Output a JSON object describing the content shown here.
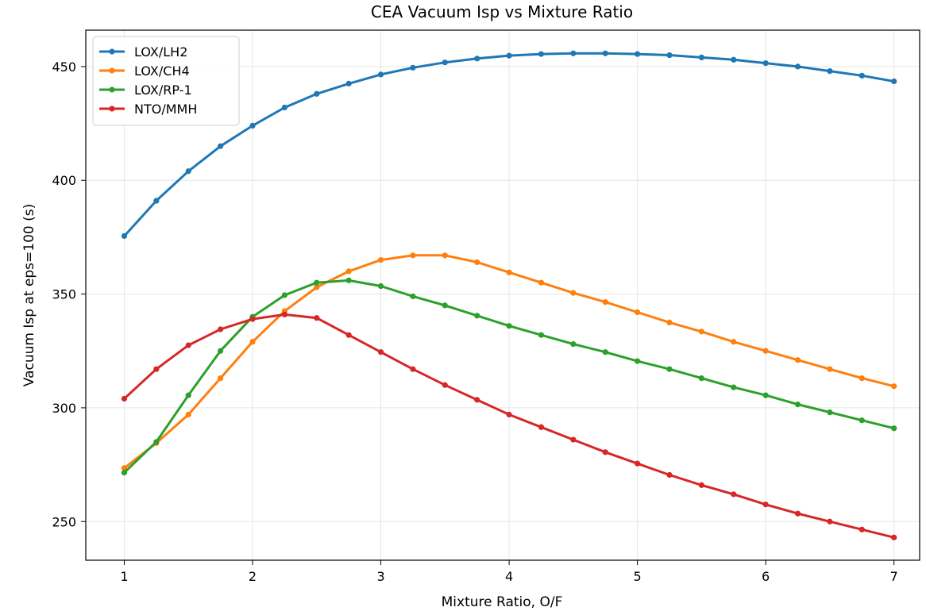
{
  "chart_data": {
    "type": "line",
    "title": "CEA Vacuum Isp vs Mixture Ratio",
    "xlabel": "Mixture Ratio, O/F",
    "ylabel": "Vacuum Isp at eps=100 (s)",
    "xlim": [
      0.7,
      7.2
    ],
    "ylim": [
      233,
      466
    ],
    "xticks": [
      1,
      2,
      3,
      4,
      5,
      6,
      7
    ],
    "yticks": [
      250,
      300,
      350,
      400,
      450
    ],
    "grid": true,
    "legend": "top-left",
    "x": [
      1.0,
      1.25,
      1.5,
      1.75,
      2.0,
      2.25,
      2.5,
      2.75,
      3.0,
      3.25,
      3.5,
      3.75,
      4.0,
      4.25,
      4.5,
      4.75,
      5.0,
      5.25,
      5.5,
      5.75,
      6.0,
      6.25,
      6.5,
      6.75,
      7.0
    ],
    "series": [
      {
        "name": "LOX/LH2",
        "color": "#1f77b4",
        "values": [
          375.5,
          391,
          404,
          415,
          424,
          432,
          438,
          442.5,
          446.5,
          449.5,
          451.8,
          453.5,
          454.8,
          455.5,
          455.8,
          455.8,
          455.5,
          455,
          454,
          453,
          451.5,
          450,
          448,
          446,
          443.5
        ]
      },
      {
        "name": "LOX/CH4",
        "color": "#ff7f0e",
        "values": [
          273.5,
          284.5,
          297,
          313,
          329,
          342.5,
          353,
          360,
          365,
          367,
          367,
          364,
          359.5,
          355,
          350.5,
          346.5,
          342,
          337.5,
          333.5,
          329,
          325,
          321,
          317,
          313,
          309.5
        ]
      },
      {
        "name": "LOX/RP-1",
        "color": "#2ca02c",
        "values": [
          271.5,
          285,
          305.5,
          325,
          340,
          349.5,
          355,
          356,
          353.5,
          349,
          345,
          340.5,
          336,
          332,
          328,
          324.5,
          320.5,
          317,
          313,
          309,
          305.5,
          301.5,
          298,
          294.5,
          291
        ]
      },
      {
        "name": "NTO/MMH",
        "color": "#d62728",
        "values": [
          304,
          317,
          327.5,
          334.5,
          339,
          341,
          339.5,
          332,
          324.5,
          317,
          310,
          303.5,
          297,
          291.5,
          286,
          280.5,
          275.5,
          270.5,
          266,
          262,
          257.5,
          253.5,
          250,
          246.5,
          243
        ]
      }
    ]
  }
}
